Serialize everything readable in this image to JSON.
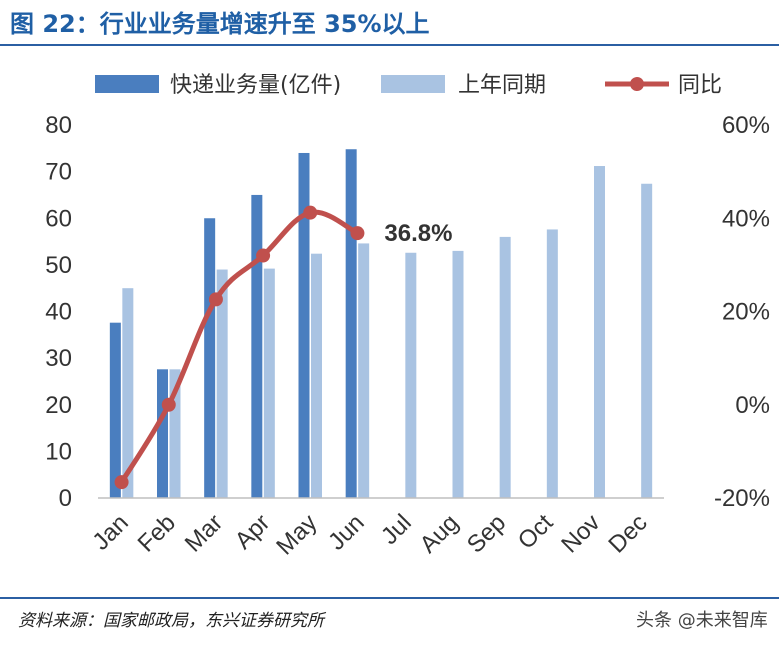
{
  "header": {
    "title": "图 22：行业业务量增速升至 35%以上"
  },
  "footer": {
    "source": "资料来源：国家邮政局，东兴证券研究所",
    "watermark": "头条 @未来智库"
  },
  "colors": {
    "current": "#4a7ebf",
    "last_year": "#a9c3e2",
    "yoy": "#c0504d",
    "title": "#1f5fa5",
    "rule": "#2b5fa3"
  },
  "chart_data": {
    "type": "bar",
    "categories": [
      "Jan",
      "Feb",
      "Mar",
      "Apr",
      "May",
      "Jun",
      "Jul",
      "Aug",
      "Sep",
      "Oct",
      "Nov",
      "Dec"
    ],
    "series": [
      {
        "name": "快递业务量(亿件)",
        "type": "bar",
        "axis": "left",
        "values": [
          37.6,
          27.6,
          60.0,
          65.0,
          74.0,
          74.8,
          null,
          null,
          null,
          null,
          null,
          null
        ]
      },
      {
        "name": "上年同期",
        "type": "bar",
        "axis": "left",
        "values": [
          45.0,
          27.6,
          49.0,
          49.2,
          52.4,
          54.6,
          52.6,
          53.0,
          56.0,
          57.6,
          71.2,
          67.4
        ]
      },
      {
        "name": "同比",
        "type": "line",
        "axis": "right",
        "values": [
          -16.6,
          0.0,
          22.6,
          32.0,
          41.2,
          36.8,
          null,
          null,
          null,
          null,
          null,
          null
        ]
      }
    ],
    "yleft": {
      "lim": [
        0,
        80
      ],
      "ticks": [
        "0",
        "10",
        "20",
        "30",
        "40",
        "50",
        "60",
        "70",
        "80"
      ]
    },
    "yright": {
      "lim": [
        -20,
        60
      ],
      "ticks": [
        "-20%",
        "0%",
        "20%",
        "40%",
        "60%"
      ]
    },
    "annotation": {
      "text": "36.8%",
      "category": "Jun"
    },
    "legend": "top",
    "grid": false
  }
}
